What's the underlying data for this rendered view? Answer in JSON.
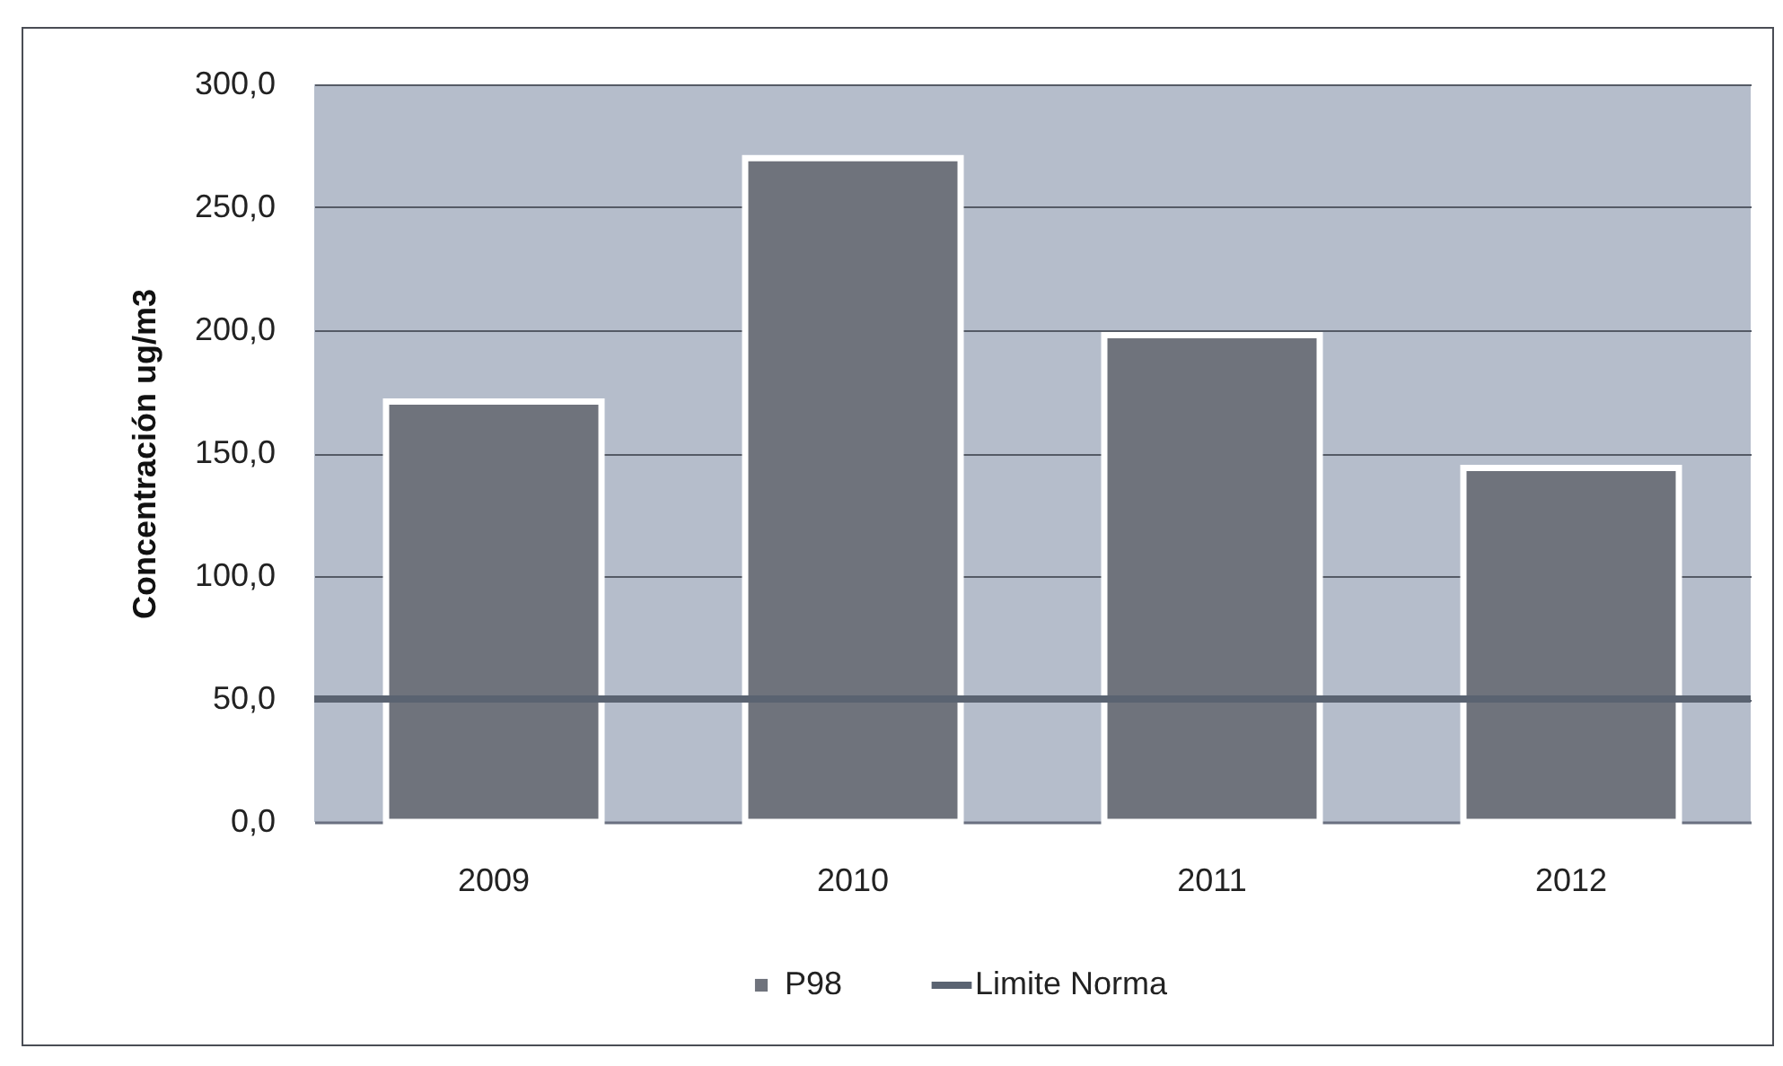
{
  "chart_data": {
    "type": "bar",
    "ylabel": "Concentración ug/m3",
    "categories": [
      "2009",
      "2010",
      "2011",
      "2012"
    ],
    "series": [
      {
        "name": "P98",
        "color": "#6f737c",
        "values": [
          171,
          270,
          198,
          144
        ]
      }
    ],
    "ylim": [
      0,
      300
    ],
    "yticks": [
      {
        "value": 0,
        "label": "0,0"
      },
      {
        "value": 50,
        "label": "50,0"
      },
      {
        "value": 100,
        "label": "100,0"
      },
      {
        "value": 150,
        "label": "150,0"
      },
      {
        "value": 200,
        "label": "200,0"
      },
      {
        "value": 250,
        "label": "250,0"
      },
      {
        "value": 300,
        "label": "300,0"
      }
    ],
    "grid": "y",
    "legend": "bottom",
    "ref_lines": [
      {
        "axis": "y",
        "value": 50,
        "label": "Limite Norma",
        "color": "#5a6371"
      }
    ]
  }
}
